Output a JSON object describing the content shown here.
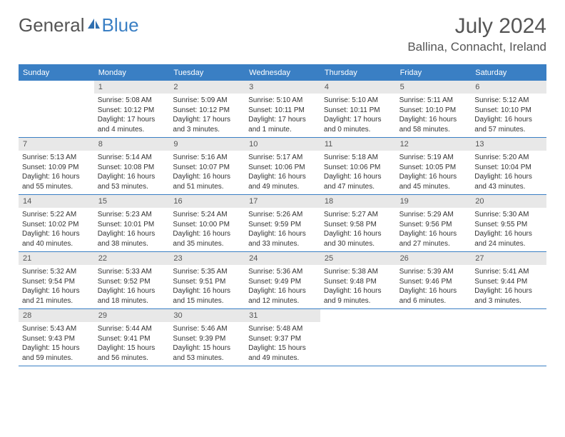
{
  "logo": {
    "text1": "General",
    "text2": "Blue"
  },
  "title": "July 2024",
  "location": "Ballina, Connacht, Ireland",
  "day_headers": [
    "Sunday",
    "Monday",
    "Tuesday",
    "Wednesday",
    "Thursday",
    "Friday",
    "Saturday"
  ],
  "header_bg": "#3a7fc4",
  "daynum_bg": "#e8e8e8",
  "weeks": [
    [
      {
        "n": "",
        "sr": "",
        "ss": "",
        "dl": ""
      },
      {
        "n": "1",
        "sr": "Sunrise: 5:08 AM",
        "ss": "Sunset: 10:12 PM",
        "dl": "Daylight: 17 hours and 4 minutes."
      },
      {
        "n": "2",
        "sr": "Sunrise: 5:09 AM",
        "ss": "Sunset: 10:12 PM",
        "dl": "Daylight: 17 hours and 3 minutes."
      },
      {
        "n": "3",
        "sr": "Sunrise: 5:10 AM",
        "ss": "Sunset: 10:11 PM",
        "dl": "Daylight: 17 hours and 1 minute."
      },
      {
        "n": "4",
        "sr": "Sunrise: 5:10 AM",
        "ss": "Sunset: 10:11 PM",
        "dl": "Daylight: 17 hours and 0 minutes."
      },
      {
        "n": "5",
        "sr": "Sunrise: 5:11 AM",
        "ss": "Sunset: 10:10 PM",
        "dl": "Daylight: 16 hours and 58 minutes."
      },
      {
        "n": "6",
        "sr": "Sunrise: 5:12 AM",
        "ss": "Sunset: 10:10 PM",
        "dl": "Daylight: 16 hours and 57 minutes."
      }
    ],
    [
      {
        "n": "7",
        "sr": "Sunrise: 5:13 AM",
        "ss": "Sunset: 10:09 PM",
        "dl": "Daylight: 16 hours and 55 minutes."
      },
      {
        "n": "8",
        "sr": "Sunrise: 5:14 AM",
        "ss": "Sunset: 10:08 PM",
        "dl": "Daylight: 16 hours and 53 minutes."
      },
      {
        "n": "9",
        "sr": "Sunrise: 5:16 AM",
        "ss": "Sunset: 10:07 PM",
        "dl": "Daylight: 16 hours and 51 minutes."
      },
      {
        "n": "10",
        "sr": "Sunrise: 5:17 AM",
        "ss": "Sunset: 10:06 PM",
        "dl": "Daylight: 16 hours and 49 minutes."
      },
      {
        "n": "11",
        "sr": "Sunrise: 5:18 AM",
        "ss": "Sunset: 10:06 PM",
        "dl": "Daylight: 16 hours and 47 minutes."
      },
      {
        "n": "12",
        "sr": "Sunrise: 5:19 AM",
        "ss": "Sunset: 10:05 PM",
        "dl": "Daylight: 16 hours and 45 minutes."
      },
      {
        "n": "13",
        "sr": "Sunrise: 5:20 AM",
        "ss": "Sunset: 10:04 PM",
        "dl": "Daylight: 16 hours and 43 minutes."
      }
    ],
    [
      {
        "n": "14",
        "sr": "Sunrise: 5:22 AM",
        "ss": "Sunset: 10:02 PM",
        "dl": "Daylight: 16 hours and 40 minutes."
      },
      {
        "n": "15",
        "sr": "Sunrise: 5:23 AM",
        "ss": "Sunset: 10:01 PM",
        "dl": "Daylight: 16 hours and 38 minutes."
      },
      {
        "n": "16",
        "sr": "Sunrise: 5:24 AM",
        "ss": "Sunset: 10:00 PM",
        "dl": "Daylight: 16 hours and 35 minutes."
      },
      {
        "n": "17",
        "sr": "Sunrise: 5:26 AM",
        "ss": "Sunset: 9:59 PM",
        "dl": "Daylight: 16 hours and 33 minutes."
      },
      {
        "n": "18",
        "sr": "Sunrise: 5:27 AM",
        "ss": "Sunset: 9:58 PM",
        "dl": "Daylight: 16 hours and 30 minutes."
      },
      {
        "n": "19",
        "sr": "Sunrise: 5:29 AM",
        "ss": "Sunset: 9:56 PM",
        "dl": "Daylight: 16 hours and 27 minutes."
      },
      {
        "n": "20",
        "sr": "Sunrise: 5:30 AM",
        "ss": "Sunset: 9:55 PM",
        "dl": "Daylight: 16 hours and 24 minutes."
      }
    ],
    [
      {
        "n": "21",
        "sr": "Sunrise: 5:32 AM",
        "ss": "Sunset: 9:54 PM",
        "dl": "Daylight: 16 hours and 21 minutes."
      },
      {
        "n": "22",
        "sr": "Sunrise: 5:33 AM",
        "ss": "Sunset: 9:52 PM",
        "dl": "Daylight: 16 hours and 18 minutes."
      },
      {
        "n": "23",
        "sr": "Sunrise: 5:35 AM",
        "ss": "Sunset: 9:51 PM",
        "dl": "Daylight: 16 hours and 15 minutes."
      },
      {
        "n": "24",
        "sr": "Sunrise: 5:36 AM",
        "ss": "Sunset: 9:49 PM",
        "dl": "Daylight: 16 hours and 12 minutes."
      },
      {
        "n": "25",
        "sr": "Sunrise: 5:38 AM",
        "ss": "Sunset: 9:48 PM",
        "dl": "Daylight: 16 hours and 9 minutes."
      },
      {
        "n": "26",
        "sr": "Sunrise: 5:39 AM",
        "ss": "Sunset: 9:46 PM",
        "dl": "Daylight: 16 hours and 6 minutes."
      },
      {
        "n": "27",
        "sr": "Sunrise: 5:41 AM",
        "ss": "Sunset: 9:44 PM",
        "dl": "Daylight: 16 hours and 3 minutes."
      }
    ],
    [
      {
        "n": "28",
        "sr": "Sunrise: 5:43 AM",
        "ss": "Sunset: 9:43 PM",
        "dl": "Daylight: 15 hours and 59 minutes."
      },
      {
        "n": "29",
        "sr": "Sunrise: 5:44 AM",
        "ss": "Sunset: 9:41 PM",
        "dl": "Daylight: 15 hours and 56 minutes."
      },
      {
        "n": "30",
        "sr": "Sunrise: 5:46 AM",
        "ss": "Sunset: 9:39 PM",
        "dl": "Daylight: 15 hours and 53 minutes."
      },
      {
        "n": "31",
        "sr": "Sunrise: 5:48 AM",
        "ss": "Sunset: 9:37 PM",
        "dl": "Daylight: 15 hours and 49 minutes."
      },
      {
        "n": "",
        "sr": "",
        "ss": "",
        "dl": ""
      },
      {
        "n": "",
        "sr": "",
        "ss": "",
        "dl": ""
      },
      {
        "n": "",
        "sr": "",
        "ss": "",
        "dl": ""
      }
    ]
  ]
}
